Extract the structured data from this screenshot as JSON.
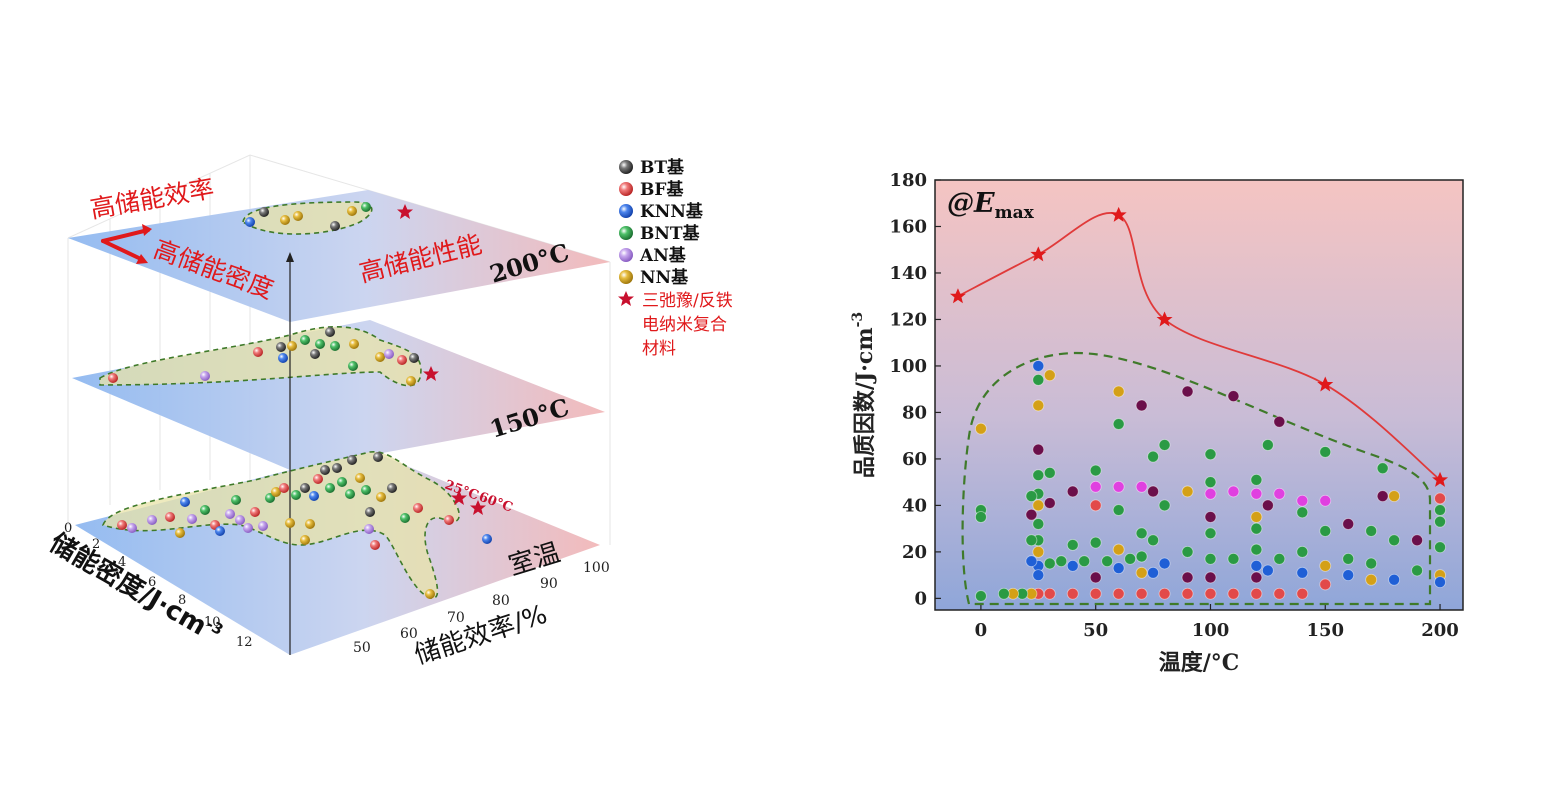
{
  "colors": {
    "BT": "#3a3a3a",
    "BF": "#e24a4a",
    "KNN": "#1f5fd6",
    "BNT": "#2a9a44",
    "AN": "#b48be0",
    "NN": "#d4a017",
    "star": "#c8102e",
    "label_red": "#e0191b",
    "green_dash": "#3f7a2a",
    "purple_dark": "#6b0f4a",
    "magenta": "#e040e0"
  },
  "left_chart": {
    "title_efficiency": "高储能效率",
    "title_density": "高储能密度",
    "title_performance": "高储能性能",
    "planes": [
      {
        "label": "200°C"
      },
      {
        "label": "150°C"
      },
      {
        "label": "室温"
      }
    ],
    "star_labels": {
      "t25": "25°C",
      "t60": "60°C"
    },
    "axis_density": {
      "label": "储能密度/J·cm",
      "exp": "-3",
      "ticks": [
        "0",
        "2",
        "4",
        "6",
        "8",
        "10",
        "12"
      ]
    },
    "axis_efficiency": {
      "label": "储能效率/%",
      "ticks": [
        "50",
        "60",
        "70",
        "80",
        "90",
        "100"
      ]
    },
    "legend": [
      {
        "key": "BT",
        "label": "BT基",
        "icon": "sphere-icon"
      },
      {
        "key": "BF",
        "label": "BF基",
        "icon": "sphere-icon"
      },
      {
        "key": "KNN",
        "label": "KNN基",
        "icon": "sphere-icon"
      },
      {
        "key": "BNT",
        "label": "BNT基",
        "icon": "sphere-icon"
      },
      {
        "key": "AN",
        "label": "AN基",
        "icon": "sphere-icon"
      },
      {
        "key": "NN",
        "label": "NN基",
        "icon": "sphere-icon"
      }
    ],
    "legend_star": {
      "icon": "star-icon",
      "lines": [
        "三弛豫/反铁",
        "电纳米复合",
        "材料"
      ]
    }
  },
  "chart_data": {
    "type": "scatter",
    "title": "@E",
    "title_sub": "max",
    "xlabel": "温度/°C",
    "ylabel": "品质因数/J·cm",
    "ylabel_exp": "-3",
    "xlim": [
      -20,
      210
    ],
    "ylim": [
      -5,
      180
    ],
    "xticks": [
      "0",
      "50",
      "100",
      "150",
      "200"
    ],
    "yticks": [
      "0",
      "20",
      "40",
      "60",
      "80",
      "100",
      "120",
      "140",
      "160",
      "180"
    ],
    "series": [
      {
        "name": "三弛豫/反铁电纳米复合材料",
        "marker": "star",
        "line": true,
        "points": [
          [
            -10,
            130
          ],
          [
            25,
            148
          ],
          [
            60,
            165
          ],
          [
            80,
            120
          ],
          [
            150,
            92
          ],
          [
            200,
            51
          ]
        ]
      }
    ],
    "scatter_points": [
      [
        0,
        38,
        "BNT"
      ],
      [
        0,
        35,
        "BNT"
      ],
      [
        0,
        1,
        "BNT"
      ],
      [
        0,
        73,
        "NN"
      ],
      [
        25,
        100,
        "KNN"
      ],
      [
        25,
        94,
        "BNT"
      ],
      [
        25,
        83,
        "NN"
      ],
      [
        25,
        64,
        "BT"
      ],
      [
        25,
        53,
        "BNT"
      ],
      [
        25,
        45,
        "BNT"
      ],
      [
        25,
        40,
        "NN"
      ],
      [
        25,
        32,
        "BNT"
      ],
      [
        25,
        25,
        "BNT"
      ],
      [
        25,
        20,
        "NN"
      ],
      [
        25,
        14,
        "KNN"
      ],
      [
        25,
        10,
        "KNN"
      ],
      [
        25,
        2,
        "BF"
      ],
      [
        22,
        44,
        "BNT"
      ],
      [
        22,
        36,
        "BT"
      ],
      [
        22,
        25,
        "BNT"
      ],
      [
        22,
        16,
        "KNN"
      ],
      [
        22,
        2,
        "NN"
      ],
      [
        18,
        2,
        "BNT"
      ],
      [
        14,
        2,
        "NN"
      ],
      [
        10,
        2,
        "BNT"
      ],
      [
        30,
        96,
        "NN"
      ],
      [
        30,
        54,
        "BNT"
      ],
      [
        30,
        41,
        "BT"
      ],
      [
        30,
        15,
        "BNT"
      ],
      [
        30,
        2,
        "BF"
      ],
      [
        35,
        16,
        "BNT"
      ],
      [
        40,
        46,
        "BT"
      ],
      [
        40,
        23,
        "BNT"
      ],
      [
        40,
        14,
        "KNN"
      ],
      [
        40,
        2,
        "BF"
      ],
      [
        45,
        16,
        "BNT"
      ],
      [
        50,
        55,
        "BNT"
      ],
      [
        50,
        48,
        "AN"
      ],
      [
        50,
        40,
        "BF"
      ],
      [
        50,
        24,
        "BNT"
      ],
      [
        50,
        9,
        "BT"
      ],
      [
        50,
        2,
        "BF"
      ],
      [
        55,
        16,
        "BNT"
      ],
      [
        60,
        89,
        "NN"
      ],
      [
        60,
        75,
        "BNT"
      ],
      [
        60,
        48,
        "AN"
      ],
      [
        60,
        38,
        "BNT"
      ],
      [
        60,
        21,
        "NN"
      ],
      [
        60,
        13,
        "KNN"
      ],
      [
        60,
        2,
        "BF"
      ],
      [
        65,
        17,
        "BNT"
      ],
      [
        70,
        83,
        "BT"
      ],
      [
        70,
        48,
        "AN"
      ],
      [
        70,
        28,
        "BNT"
      ],
      [
        70,
        18,
        "BNT"
      ],
      [
        70,
        11,
        "NN"
      ],
      [
        70,
        2,
        "BF"
      ],
      [
        75,
        61,
        "BNT"
      ],
      [
        75,
        46,
        "BT"
      ],
      [
        75,
        25,
        "BNT"
      ],
      [
        75,
        11,
        "KNN"
      ],
      [
        80,
        66,
        "BNT"
      ],
      [
        80,
        40,
        "BNT"
      ],
      [
        80,
        15,
        "KNN"
      ],
      [
        80,
        2,
        "BF"
      ],
      [
        90,
        89,
        "BT"
      ],
      [
        90,
        46,
        "NN"
      ],
      [
        90,
        20,
        "BNT"
      ],
      [
        90,
        9,
        "BT"
      ],
      [
        90,
        2,
        "BF"
      ],
      [
        100,
        62,
        "BNT"
      ],
      [
        100,
        50,
        "BNT"
      ],
      [
        100,
        45,
        "AN"
      ],
      [
        100,
        35,
        "BT"
      ],
      [
        100,
        28,
        "BNT"
      ],
      [
        100,
        17,
        "BNT"
      ],
      [
        100,
        9,
        "BT"
      ],
      [
        100,
        2,
        "BF"
      ],
      [
        110,
        87,
        "BT"
      ],
      [
        110,
        46,
        "AN"
      ],
      [
        110,
        17,
        "BNT"
      ],
      [
        110,
        2,
        "BF"
      ],
      [
        120,
        51,
        "BNT"
      ],
      [
        120,
        45,
        "AN"
      ],
      [
        120,
        35,
        "NN"
      ],
      [
        120,
        30,
        "BNT"
      ],
      [
        120,
        21,
        "BNT"
      ],
      [
        120,
        14,
        "KNN"
      ],
      [
        120,
        9,
        "BT"
      ],
      [
        120,
        2,
        "BF"
      ],
      [
        125,
        66,
        "BNT"
      ],
      [
        125,
        40,
        "BT"
      ],
      [
        125,
        12,
        "KNN"
      ],
      [
        130,
        76,
        "BT"
      ],
      [
        130,
        45,
        "AN"
      ],
      [
        130,
        17,
        "BNT"
      ],
      [
        130,
        2,
        "BF"
      ],
      [
        140,
        42,
        "AN"
      ],
      [
        140,
        37,
        "BNT"
      ],
      [
        140,
        20,
        "BNT"
      ],
      [
        140,
        11,
        "KNN"
      ],
      [
        140,
        2,
        "BF"
      ],
      [
        150,
        63,
        "BNT"
      ],
      [
        150,
        42,
        "AN"
      ],
      [
        150,
        29,
        "BNT"
      ],
      [
        150,
        14,
        "NN"
      ],
      [
        150,
        6,
        "BF"
      ],
      [
        160,
        32,
        "BT"
      ],
      [
        160,
        17,
        "BNT"
      ],
      [
        160,
        10,
        "KNN"
      ],
      [
        170,
        29,
        "BNT"
      ],
      [
        170,
        15,
        "BNT"
      ],
      [
        170,
        8,
        "NN"
      ],
      [
        175,
        56,
        "BNT"
      ],
      [
        175,
        44,
        "BT"
      ],
      [
        180,
        44,
        "NN"
      ],
      [
        180,
        25,
        "BNT"
      ],
      [
        180,
        8,
        "KNN"
      ],
      [
        190,
        25,
        "BT"
      ],
      [
        190,
        12,
        "BNT"
      ],
      [
        200,
        43,
        "BF"
      ],
      [
        200,
        38,
        "BNT"
      ],
      [
        200,
        33,
        "BNT"
      ],
      [
        200,
        22,
        "BNT"
      ],
      [
        200,
        10,
        "NN"
      ],
      [
        200,
        7,
        "KNN"
      ]
    ]
  }
}
